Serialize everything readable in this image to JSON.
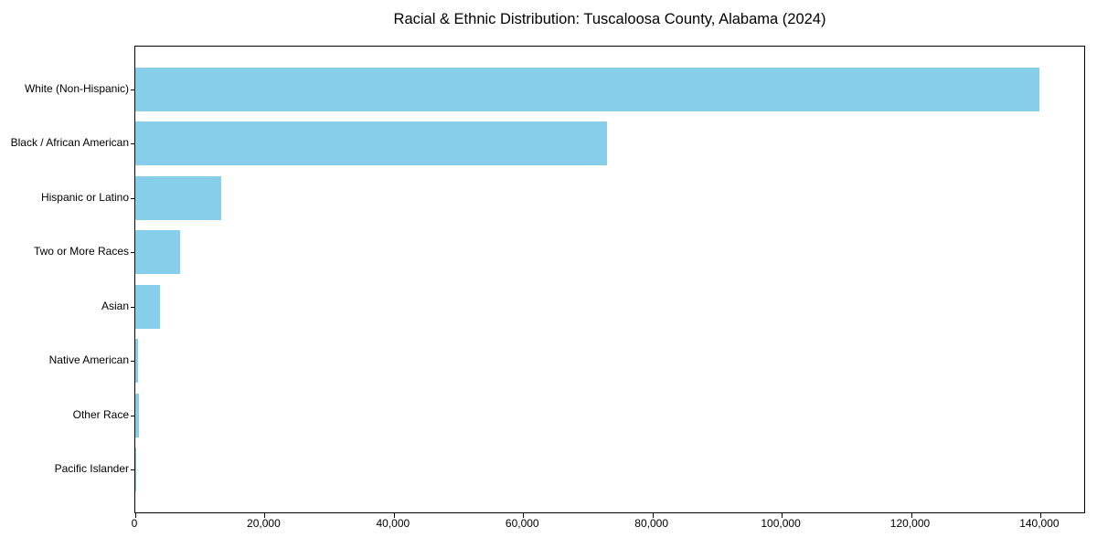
{
  "chart_data": {
    "type": "bar",
    "orientation": "horizontal",
    "title": "Racial & Ethnic Distribution: Tuscaloosa County, Alabama (2024)",
    "categories": [
      "White (Non-Hispanic)",
      "Black / African American",
      "Hispanic or Latino",
      "Two or More Races",
      "Asian",
      "Native American",
      "Other Race",
      "Pacific Islander"
    ],
    "values": [
      139800,
      73000,
      13300,
      6900,
      3800,
      450,
      500,
      100
    ],
    "xlabel": "",
    "ylabel": "",
    "xlim": [
      0,
      146800
    ],
    "xticks": [
      0,
      20000,
      40000,
      60000,
      80000,
      100000,
      120000,
      140000
    ],
    "xtick_labels": [
      "0",
      "20,000",
      "40,000",
      "60,000",
      "80,000",
      "100,000",
      "120,000",
      "140,000"
    ],
    "bar_color": "#87CEEB",
    "frame_color": "#000000",
    "background": "#FFFFFF",
    "grid": false,
    "legend": false
  }
}
